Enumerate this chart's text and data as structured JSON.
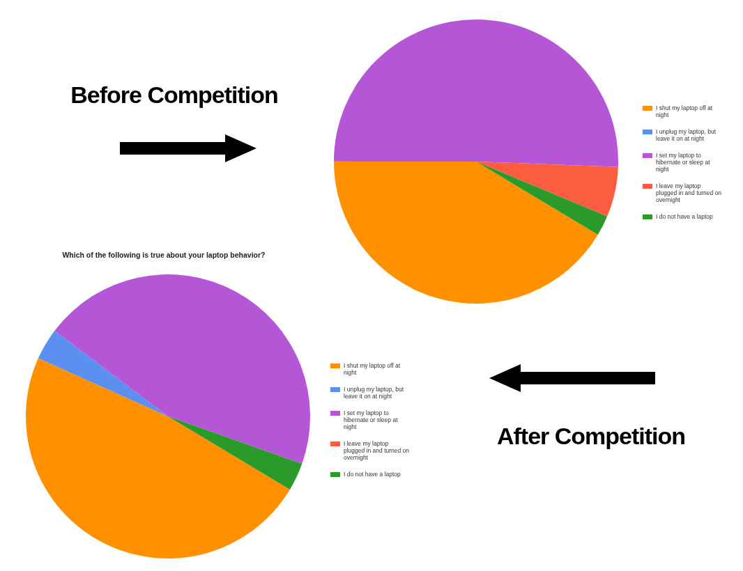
{
  "chart_data": [
    {
      "type": "pie",
      "title": "Before Competition",
      "categories": [
        "I shut my laptop off at night",
        "I unplug my laptop, but leave it on at night",
        "I set my laptop to hibernate or sleep at night",
        "I leave my laptop plugged in and turned on overnight",
        "I do not have a laptop"
      ],
      "values": [
        41.4,
        0,
        50.6,
        5.7,
        2.3
      ],
      "colors": [
        "#ff9100",
        "#5b8ff0",
        "#b556d6",
        "#fc5c3f",
        "#2a9a2a"
      ],
      "legend": "right"
    },
    {
      "type": "pie",
      "title": "After Competition",
      "subtitle": "Which of the following is true about your laptop behavior?",
      "categories": [
        "I shut my laptop off at night",
        "I unplug my laptop, but leave it on at night",
        "I set my laptop to hibernate or sleep at night",
        "I leave my laptop plugged in and turned on overnight",
        "I do not have a laptop"
      ],
      "values": [
        48.1,
        3.6,
        45.1,
        0,
        3.2
      ],
      "colors": [
        "#ff9100",
        "#5b8ff0",
        "#b556d6",
        "#fc5c3f",
        "#2a9a2a"
      ],
      "legend": "right"
    }
  ]
}
